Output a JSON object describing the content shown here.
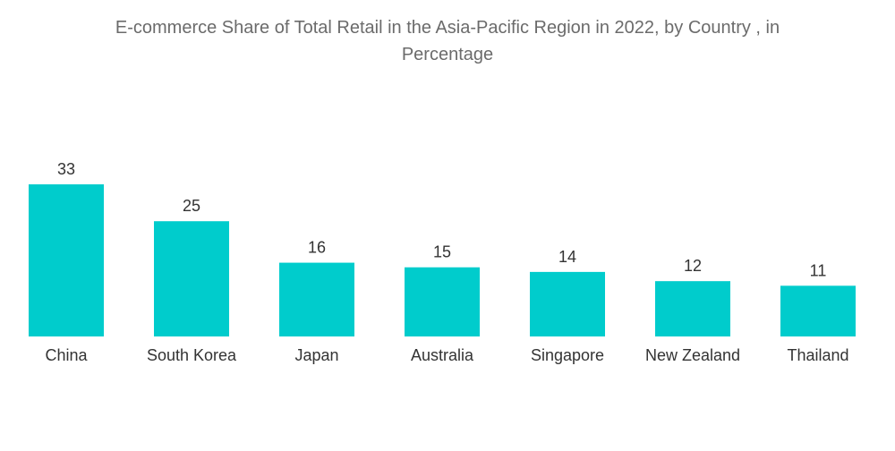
{
  "chart_data": {
    "type": "bar",
    "title_line1": "E-commerce Share of Total Retail in the Asia-Pacific Region in 2022, by Country , in",
    "title_line2": "Percentage",
    "categories": [
      "China",
      "South Korea",
      "Japan",
      "Australia",
      "Singapore",
      "New Zealand",
      "Thailand"
    ],
    "values": [
      33,
      25,
      16,
      15,
      14,
      12,
      11
    ],
    "xlabel": "",
    "ylabel": "",
    "ylim": [
      0,
      33
    ],
    "bar_color": "#00cccc",
    "grid": false
  }
}
